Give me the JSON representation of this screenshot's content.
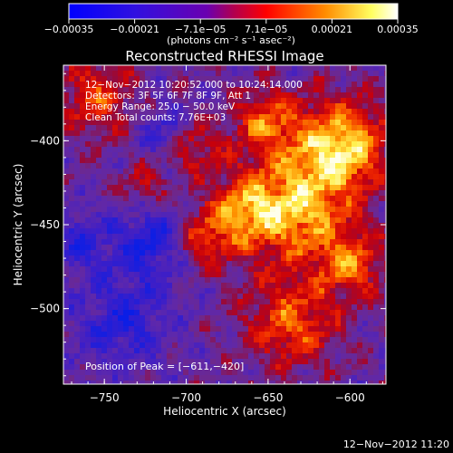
{
  "chart_data": {
    "type": "heatmap",
    "title": "Reconstructed RHESSI Image",
    "xlabel": "Heliocentric X (arcsec)",
    "ylabel": "Heliocentric Y (arcsec)",
    "xlim": [
      -775,
      -578
    ],
    "ylim": [
      -545,
      -355
    ],
    "x_ticks": [
      {
        "value": -750,
        "label": "−750"
      },
      {
        "value": -700,
        "label": "−700"
      },
      {
        "value": -650,
        "label": "−650"
      },
      {
        "value": -600,
        "label": "−600"
      }
    ],
    "y_ticks": [
      {
        "value": -400,
        "label": "−400"
      },
      {
        "value": -450,
        "label": "−450"
      },
      {
        "value": -500,
        "label": "−500"
      }
    ],
    "colorbar": {
      "range": [
        -0.00035,
        0.00035
      ],
      "tick_labels": [
        "−0.00035",
        "−0.00021",
        "−7.1e−05",
        "7.1e−05",
        "0.00021",
        "0.00035"
      ],
      "unit_label": "(photons cm⁻² s⁻¹ asec⁻²)",
      "colors": [
        "#0000ff",
        "#6a00b0",
        "#ff0000",
        "#ff8c00",
        "#ffff60",
        "#ffffff"
      ]
    },
    "annotations": [
      "12−Nov−2012 10:20:52.000 to 10:24:14.000",
      "Detectors: 3F 5F 6F 7F 8F 9F, Att 1",
      "Energy Range: 25.0 − 50.0 keV",
      "Clean     Total counts: 7.76E+03"
    ],
    "peak_label": "Position of Peak = [−611,−420]",
    "peak_position": [
      -611,
      -420
    ]
  },
  "footer": {
    "timestamp": "12−Nov−2012 11:20"
  }
}
